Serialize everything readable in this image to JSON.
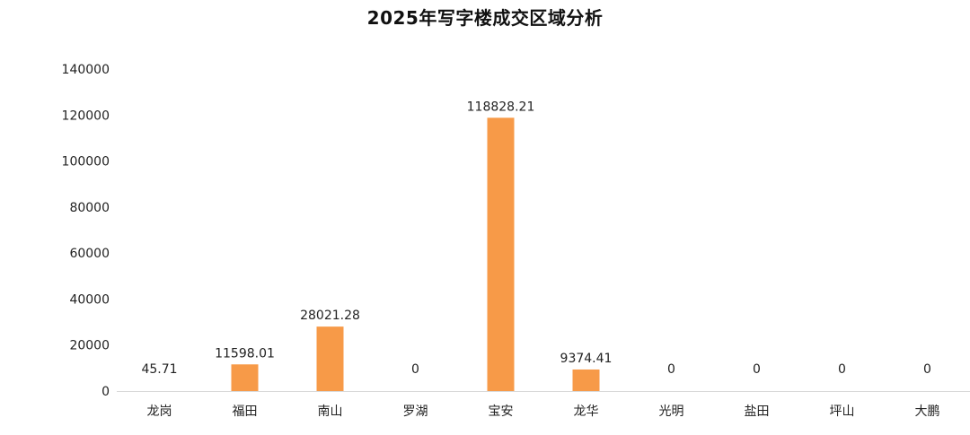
{
  "chart_data": {
    "type": "bar",
    "title": "2025年写字楼成交区域分析",
    "xlabel": "",
    "ylabel": "",
    "categories": [
      "龙岗",
      "福田",
      "南山",
      "罗湖",
      "宝安",
      "龙华",
      "光明",
      "盐田",
      "坪山",
      "大鹏"
    ],
    "values": [
      45.71,
      11598.01,
      28021.28,
      0,
      118828.21,
      9374.41,
      0,
      0,
      0,
      0
    ],
    "data_labels": [
      "45.71",
      "11598.01",
      "28021.28",
      "0",
      "118828.21",
      "9374.41",
      "0",
      "0",
      "0",
      "0"
    ],
    "ylim": [
      0,
      140000
    ],
    "yticks": [
      "0",
      "20000",
      "40000",
      "60000",
      "80000",
      "100000",
      "120000",
      "140000"
    ],
    "grid": false,
    "legend": "none",
    "colors": {
      "bar": "#F79A48",
      "axis": "#D9D9D9",
      "text": "#222222"
    }
  }
}
